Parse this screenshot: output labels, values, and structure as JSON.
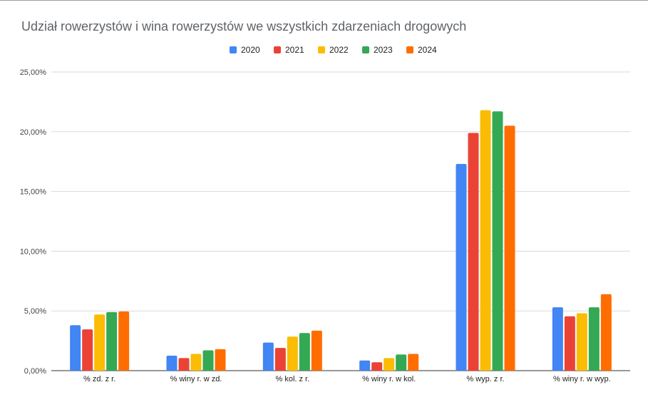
{
  "chart_data": {
    "type": "bar",
    "title": "Udział rowerzystów i wina rowerzystów we wszystkich zdarzeniach drogowych",
    "xlabel": "",
    "ylabel": "",
    "categories": [
      "% zd. z r.",
      "% winy r. w zd.",
      "% kol. z r.",
      "% winy r. w kol.",
      "% wyp. z r.",
      "% winy r. w wyp."
    ],
    "series": [
      {
        "name": "2020",
        "color": "#4285f4",
        "values": [
          3.8,
          1.25,
          2.35,
          0.85,
          17.3,
          5.3
        ]
      },
      {
        "name": "2021",
        "color": "#ea4335",
        "values": [
          3.45,
          1.05,
          1.9,
          0.7,
          19.9,
          4.55
        ]
      },
      {
        "name": "2022",
        "color": "#fbbc04",
        "values": [
          4.7,
          1.4,
          2.85,
          1.05,
          21.8,
          4.8
        ]
      },
      {
        "name": "2023",
        "color": "#34a853",
        "values": [
          4.9,
          1.7,
          3.15,
          1.35,
          21.7,
          5.3
        ]
      },
      {
        "name": "2024",
        "color": "#ff6d01",
        "values": [
          4.95,
          1.8,
          3.35,
          1.4,
          20.5,
          6.4
        ]
      }
    ],
    "ylim": [
      0,
      25
    ],
    "yticks": [
      "0,00%",
      "5,00%",
      "10,00%",
      "15,00%",
      "20,00%",
      "25,00%"
    ],
    "grid": true,
    "legend_position": "top"
  }
}
